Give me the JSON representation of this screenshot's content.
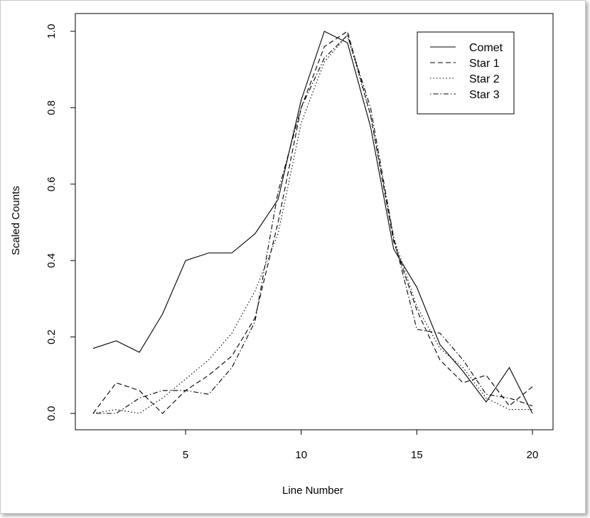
{
  "chart_data": {
    "type": "line",
    "title": "",
    "xlabel": "Line Number",
    "ylabel": "Scaled Counts",
    "xlim": [
      1,
      20
    ],
    "ylim": [
      0,
      1
    ],
    "x_ticks": [
      5,
      10,
      15,
      20
    ],
    "y_ticks": [
      "0.0",
      "0.2",
      "0.4",
      "0.6",
      "0.8",
      "1.0"
    ],
    "grid": false,
    "legend_position": "top-right",
    "x": [
      1,
      2,
      3,
      4,
      5,
      6,
      7,
      8,
      9,
      10,
      11,
      12,
      13,
      14,
      15,
      16,
      17,
      18,
      19,
      20
    ],
    "series": [
      {
        "name": "Comet",
        "style": "solid",
        "values": [
          0.17,
          0.19,
          0.16,
          0.26,
          0.4,
          0.42,
          0.42,
          0.47,
          0.56,
          0.82,
          1.0,
          0.97,
          0.75,
          0.43,
          0.33,
          0.18,
          0.11,
          0.03,
          0.12,
          0.0
        ]
      },
      {
        "name": "Star 1",
        "style": "dashed",
        "values": [
          0.0,
          0.08,
          0.06,
          0.0,
          0.06,
          0.1,
          0.15,
          0.25,
          0.5,
          0.8,
          0.96,
          1.0,
          0.78,
          0.45,
          0.27,
          0.14,
          0.08,
          0.1,
          0.02,
          0.07
        ]
      },
      {
        "name": "Star 2",
        "style": "dotted",
        "values": [
          0.0,
          0.01,
          0.0,
          0.04,
          0.09,
          0.14,
          0.21,
          0.32,
          0.47,
          0.76,
          0.92,
          0.99,
          0.78,
          0.46,
          0.28,
          0.17,
          0.12,
          0.04,
          0.01,
          0.01
        ]
      },
      {
        "name": "Star 3",
        "style": "dotdash",
        "values": [
          0.0,
          0.0,
          0.04,
          0.06,
          0.06,
          0.05,
          0.12,
          0.24,
          0.58,
          0.8,
          0.93,
          0.99,
          0.8,
          0.46,
          0.22,
          0.21,
          0.14,
          0.05,
          0.04,
          0.02
        ]
      }
    ]
  }
}
